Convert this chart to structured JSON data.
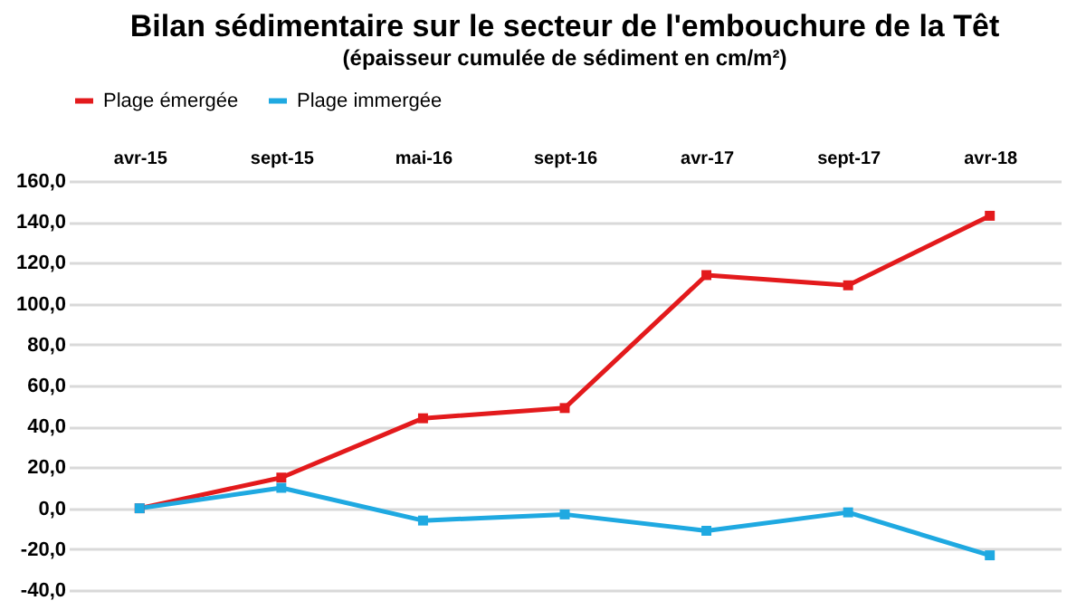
{
  "chart_data": {
    "type": "line",
    "title": "Bilan sédimentaire sur le secteur de l'embouchure de la Têt",
    "subtitle": "(épaisseur cumulée de sédiment en cm/m²)",
    "categories": [
      "avr-15",
      "sept-15",
      "mai-16",
      "sept-16",
      "avr-17",
      "sept-17",
      "avr-18"
    ],
    "series": [
      {
        "name": "Plage émergée",
        "color": "#e31a1c",
        "values": [
          0,
          15,
          44,
          49,
          114,
          109,
          143
        ]
      },
      {
        "name": "Plage immergée",
        "color": "#1fa9e1",
        "values": [
          0,
          10,
          -6,
          -3,
          -11,
          -2,
          -23
        ]
      }
    ],
    "ylim": [
      -40,
      160
    ],
    "yticks": [
      {
        "value": -40,
        "label": "-40,0"
      },
      {
        "value": -20,
        "label": "-20,0"
      },
      {
        "value": 0,
        "label": "0,0"
      },
      {
        "value": 20,
        "label": "20,0"
      },
      {
        "value": 40,
        "label": "40,0"
      },
      {
        "value": 60,
        "label": "60,0"
      },
      {
        "value": 80,
        "label": "80,0"
      },
      {
        "value": 100,
        "label": "100,0"
      },
      {
        "value": 120,
        "label": "120,0"
      },
      {
        "value": 140,
        "label": "140,0"
      },
      {
        "value": 160,
        "label": "160,0"
      }
    ],
    "grid": "y",
    "legend": "top",
    "marker": "square",
    "line_style": "solid"
  }
}
